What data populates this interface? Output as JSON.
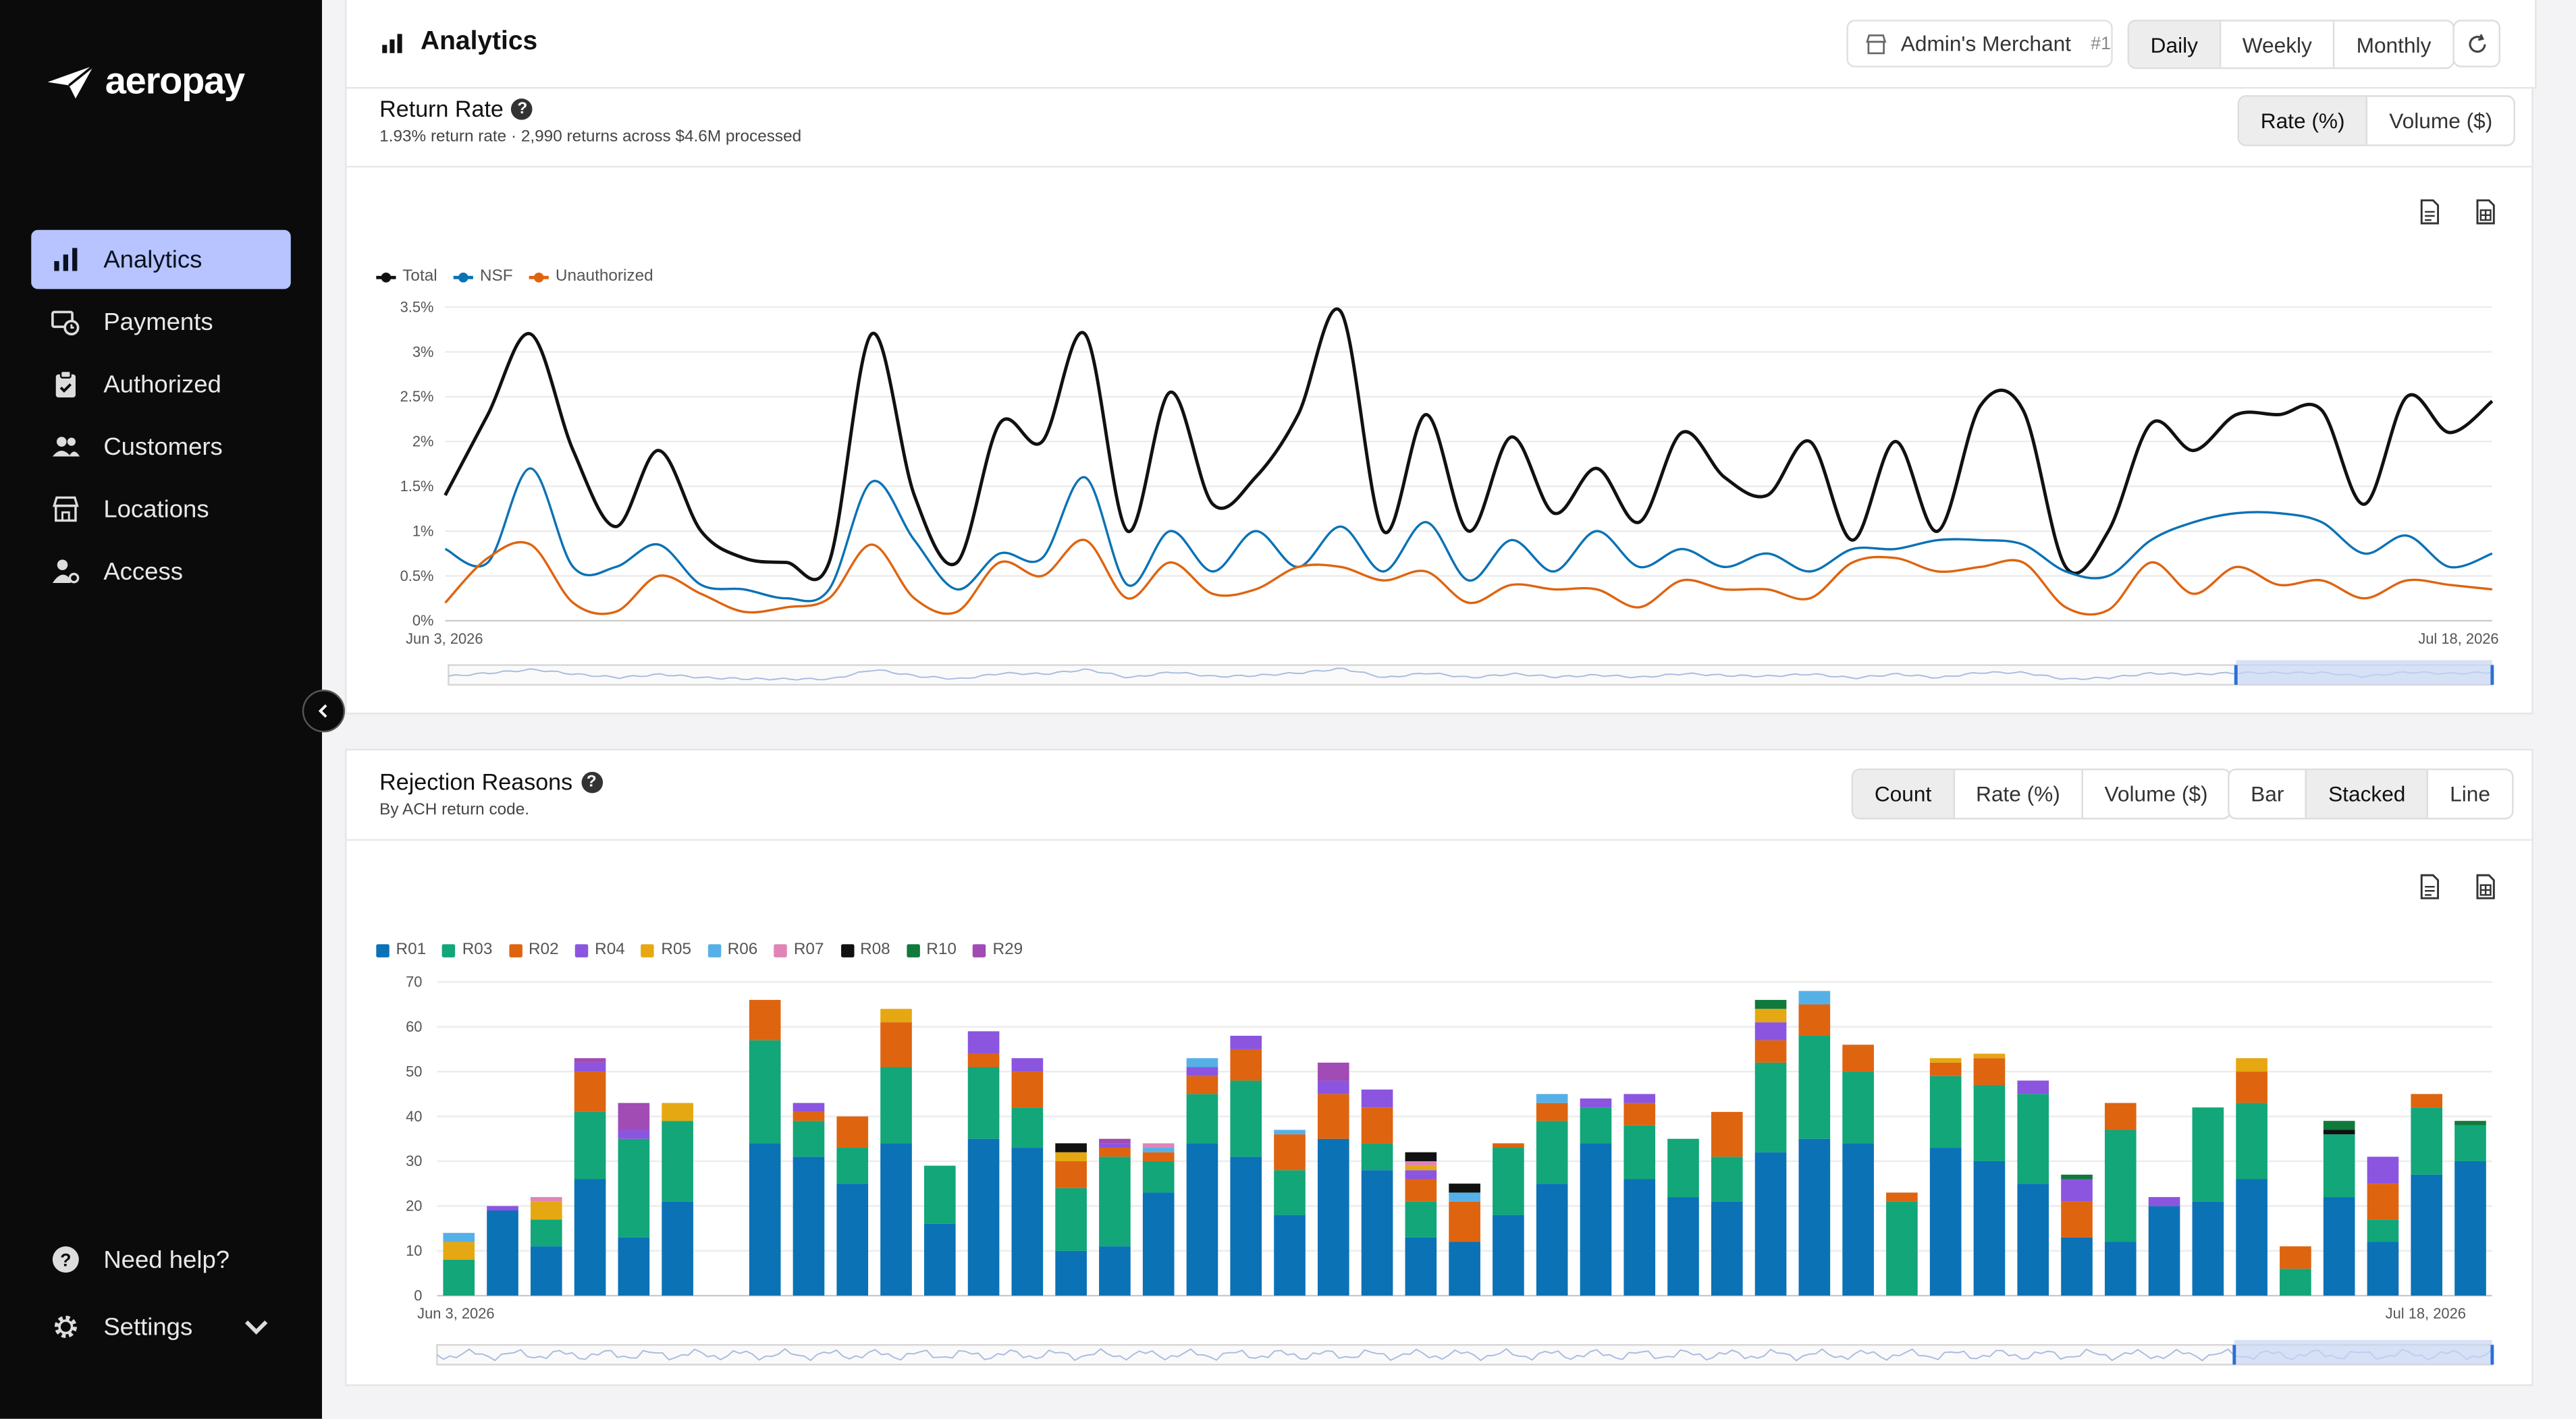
{
  "brand": {
    "name": "aeropay"
  },
  "sidebar": {
    "items": [
      {
        "label": "Analytics",
        "icon": "bar-chart-icon",
        "active": true
      },
      {
        "label": "Payments",
        "icon": "payments-icon"
      },
      {
        "label": "Authorized",
        "icon": "clipboard-icon"
      },
      {
        "label": "Customers",
        "icon": "users-icon"
      },
      {
        "label": "Locations",
        "icon": "building-icon"
      },
      {
        "label": "Access",
        "icon": "user-key-icon"
      }
    ],
    "help_label": "Need help?",
    "settings_label": "Settings"
  },
  "header": {
    "title": "Analytics",
    "merchant": {
      "name": "Admin's Merchant",
      "number": "#1"
    },
    "period_tabs": [
      "Daily",
      "Weekly",
      "Monthly"
    ],
    "selected_period": "Daily"
  },
  "return_rate": {
    "title": "Return Rate",
    "subtitle": "1.93% return rate · 2,990 returns across $4.6M processed",
    "mode_tabs": [
      "Rate (%)",
      "Volume ($)"
    ],
    "selected_mode": "Rate (%)"
  },
  "rejection": {
    "title": "Rejection Reasons",
    "subtitle": "By ACH return code.",
    "metric_tabs": [
      "Count",
      "Rate (%)",
      "Volume ($)"
    ],
    "selected_metric": "Count",
    "type_tabs": [
      "Bar",
      "Stacked",
      "Line"
    ],
    "selected_type": "Stacked"
  },
  "colors": {
    "accent": "#b7c4ff",
    "total": "#111111",
    "nsf": "#0b72b5",
    "unauthorized": "#de6410"
  },
  "chart_data": [
    {
      "type": "line",
      "x_start": "Jun 3, 2026",
      "x_end": "Jul 18, 2026",
      "yticks": [
        "0%",
        "0.5%",
        "1%",
        "1.5%",
        "2%",
        "2.5%",
        "3%",
        "3.5%"
      ],
      "ylim": [
        0,
        3.5
      ],
      "grid": true,
      "legend_position": "top-left",
      "series": [
        {
          "name": "Total",
          "color": "#111111",
          "values": [
            1.4,
            2.3,
            3.2,
            1.9,
            1.05,
            1.9,
            1.0,
            0.7,
            0.65,
            0.65,
            3.2,
            1.4,
            0.65,
            2.2,
            2.0,
            3.2,
            1.0,
            2.55,
            1.3,
            1.6,
            2.3,
            3.45,
            1.0,
            2.3,
            1.0,
            2.05,
            1.2,
            1.7,
            1.1,
            2.1,
            1.6,
            1.4,
            2.0,
            0.9,
            2.0,
            1.0,
            2.4,
            2.35,
            0.6,
            1.0,
            2.2,
            1.9,
            2.3,
            2.3,
            2.35,
            1.3,
            2.5,
            2.1,
            2.45
          ]
        },
        {
          "name": "NSF",
          "color": "#0b72b5",
          "values": [
            0.8,
            0.65,
            1.7,
            0.6,
            0.6,
            0.85,
            0.4,
            0.35,
            0.25,
            0.35,
            1.55,
            0.9,
            0.35,
            0.75,
            0.7,
            1.6,
            0.4,
            1.0,
            0.55,
            1.0,
            0.6,
            1.05,
            0.55,
            1.1,
            0.45,
            0.9,
            0.55,
            1.0,
            0.6,
            0.8,
            0.6,
            0.75,
            0.55,
            0.8,
            0.8,
            0.9,
            0.9,
            0.85,
            0.55,
            0.5,
            0.9,
            1.1,
            1.2,
            1.2,
            1.1,
            0.75,
            0.95,
            0.6,
            0.75
          ]
        },
        {
          "name": "Unauthorized",
          "color": "#de6410",
          "values": [
            0.2,
            0.7,
            0.85,
            0.2,
            0.1,
            0.5,
            0.3,
            0.1,
            0.15,
            0.25,
            0.85,
            0.25,
            0.1,
            0.65,
            0.5,
            0.9,
            0.25,
            0.65,
            0.3,
            0.35,
            0.6,
            0.6,
            0.45,
            0.55,
            0.2,
            0.4,
            0.35,
            0.35,
            0.15,
            0.45,
            0.35,
            0.35,
            0.25,
            0.65,
            0.7,
            0.55,
            0.6,
            0.65,
            0.15,
            0.12,
            0.65,
            0.3,
            0.6,
            0.4,
            0.45,
            0.25,
            0.45,
            0.4,
            0.35
          ]
        }
      ]
    },
    {
      "type": "bar",
      "stacked": true,
      "x_start": "Jun 3, 2026",
      "x_end": "Jul 18, 2026",
      "yticks": [
        "0",
        "10",
        "20",
        "30",
        "40",
        "50",
        "60",
        "70"
      ],
      "ylim": [
        0,
        70
      ],
      "grid": true,
      "legend_position": "top-left",
      "series_names": [
        "R01",
        "R03",
        "R02",
        "R04",
        "R05",
        "R06",
        "R07",
        "R08",
        "R10",
        "R29"
      ],
      "series_colors": [
        "#0b72b5",
        "#12a679",
        "#de6410",
        "#8b55e0",
        "#e6a812",
        "#56b0e8",
        "#e084b8",
        "#111111",
        "#0f7a3c",
        "#a14bb5"
      ],
      "bars": [
        [
          0,
          8,
          0,
          0,
          4,
          2,
          0,
          0,
          0,
          0
        ],
        [
          19,
          0,
          0,
          1,
          0,
          0,
          0,
          0,
          0,
          0
        ],
        [
          11,
          6,
          0,
          0,
          4,
          0,
          1,
          0,
          0,
          0
        ],
        [
          26,
          15,
          9,
          2,
          0,
          0,
          0,
          0,
          0,
          1
        ],
        [
          13,
          22,
          0,
          2,
          0,
          0,
          0,
          0,
          0,
          6
        ],
        [
          21,
          18,
          0,
          0,
          4,
          0,
          0,
          0,
          0,
          0
        ],
        [
          0,
          0,
          0,
          0,
          0,
          0,
          0,
          0,
          0,
          0
        ],
        [
          34,
          23,
          9,
          0,
          0,
          0,
          0,
          0,
          0,
          0
        ],
        [
          31,
          8,
          2,
          2,
          0,
          0,
          0,
          0,
          0,
          0
        ],
        [
          25,
          8,
          7,
          0,
          0,
          0,
          0,
          0,
          0,
          0
        ],
        [
          34,
          17,
          10,
          0,
          3,
          0,
          0,
          0,
          0,
          0
        ],
        [
          16,
          13,
          0,
          0,
          0,
          0,
          0,
          0,
          0,
          0
        ],
        [
          35,
          16,
          3,
          5,
          0,
          0,
          0,
          0,
          0,
          0
        ],
        [
          33,
          9,
          8,
          3,
          0,
          0,
          0,
          0,
          0,
          0
        ],
        [
          10,
          14,
          6,
          0,
          2,
          0,
          0,
          2,
          0,
          0
        ],
        [
          11,
          20,
          2,
          1,
          0,
          0,
          0,
          0,
          0,
          1
        ],
        [
          23,
          7,
          2,
          0,
          0,
          1,
          1,
          0,
          0,
          0
        ],
        [
          34,
          11,
          4,
          2,
          0,
          2,
          0,
          0,
          0,
          0
        ],
        [
          31,
          17,
          7,
          3,
          0,
          0,
          0,
          0,
          0,
          0
        ],
        [
          18,
          10,
          8,
          0,
          0,
          1,
          0,
          0,
          0,
          0
        ],
        [
          35,
          0,
          10,
          3,
          0,
          0,
          0,
          0,
          0,
          4
        ],
        [
          28,
          6,
          8,
          4,
          0,
          0,
          0,
          0,
          0,
          0
        ],
        [
          13,
          8,
          5,
          2,
          1,
          0,
          1,
          2,
          0,
          0
        ],
        [
          12,
          0,
          9,
          0,
          0,
          2,
          0,
          2,
          0,
          0
        ],
        [
          18,
          15,
          1,
          0,
          0,
          0,
          0,
          0,
          0,
          0
        ],
        [
          25,
          14,
          4,
          0,
          0,
          2,
          0,
          0,
          0,
          0
        ],
        [
          34,
          8,
          0,
          2,
          0,
          0,
          0,
          0,
          0,
          0
        ],
        [
          26,
          12,
          5,
          2,
          0,
          0,
          0,
          0,
          0,
          0
        ],
        [
          22,
          13,
          0,
          0,
          0,
          0,
          0,
          0,
          0,
          0
        ],
        [
          21,
          10,
          10,
          0,
          0,
          0,
          0,
          0,
          0,
          0
        ],
        [
          32,
          20,
          5,
          4,
          3,
          0,
          0,
          0,
          2,
          0
        ],
        [
          35,
          23,
          7,
          0,
          0,
          3,
          0,
          0,
          0,
          0
        ],
        [
          34,
          16,
          6,
          0,
          0,
          0,
          0,
          0,
          0,
          0
        ],
        [
          0,
          21,
          2,
          0,
          0,
          0,
          0,
          0,
          0,
          0
        ],
        [
          33,
          16,
          3,
          0,
          1,
          0,
          0,
          0,
          0,
          0
        ],
        [
          30,
          17,
          6,
          0,
          1,
          0,
          0,
          0,
          0,
          0
        ],
        [
          25,
          20,
          0,
          3,
          0,
          0,
          0,
          0,
          0,
          0
        ],
        [
          13,
          0,
          8,
          5,
          0,
          0,
          0,
          0,
          1,
          0
        ],
        [
          12,
          25,
          6,
          0,
          0,
          0,
          0,
          0,
          0,
          0
        ],
        [
          20,
          0,
          0,
          2,
          0,
          0,
          0,
          0,
          0,
          0
        ],
        [
          21,
          21,
          0,
          0,
          0,
          0,
          0,
          0,
          0,
          0
        ],
        [
          26,
          17,
          7,
          0,
          3,
          0,
          0,
          0,
          0,
          0
        ],
        [
          0,
          6,
          5,
          0,
          0,
          0,
          0,
          0,
          0,
          0
        ],
        [
          22,
          14,
          0,
          0,
          0,
          0,
          0,
          1,
          2,
          0
        ],
        [
          12,
          5,
          8,
          6,
          0,
          0,
          0,
          0,
          0,
          0
        ],
        [
          27,
          15,
          3,
          0,
          0,
          0,
          0,
          0,
          0,
          0
        ],
        [
          30,
          8,
          0,
          0,
          0,
          0,
          0,
          0,
          1,
          0
        ]
      ]
    }
  ]
}
